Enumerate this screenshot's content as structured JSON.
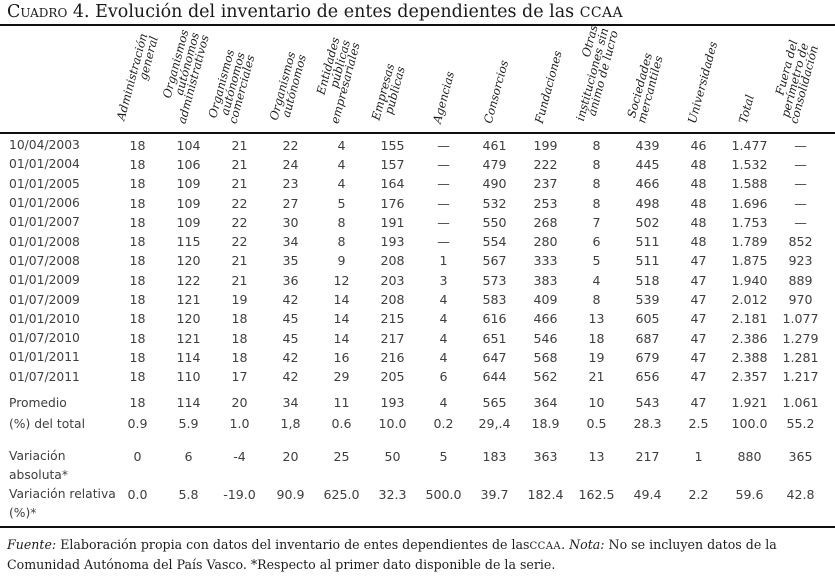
{
  "title": {
    "label": "Cuadro 4.",
    "text": "Evolución del inventario de entes dependientes de las",
    "acronym": "CCAA"
  },
  "table": {
    "headers": [
      "Administración\ngeneral",
      "Organismos\nautónomos\nadministrativos",
      "Organismos\nautónomos\ncomerciales",
      "Organismos\nautónomos",
      "Entidades\npúblicas\nempresariales",
      "Empresas\npúblicas",
      "Agencias",
      "Consorcios",
      "Fundaciones",
      "Otras\ninstituciones sin\nánimo de lucro",
      "Sociedades\nmercantiles",
      "Universidades",
      "Total",
      "Fuera del\nperímetro de\nconsolidación"
    ],
    "rows": [
      {
        "label": "10/04/2003",
        "values": [
          "18",
          "104",
          "21",
          "22",
          "4",
          "155",
          "—",
          "461",
          "199",
          "8",
          "439",
          "46",
          "1.477",
          "—"
        ]
      },
      {
        "label": "01/01/2004",
        "values": [
          "18",
          "106",
          "21",
          "24",
          "4",
          "157",
          "—",
          "479",
          "222",
          "8",
          "445",
          "48",
          "1.532",
          "—"
        ]
      },
      {
        "label": "01/01/2005",
        "values": [
          "18",
          "109",
          "21",
          "23",
          "4",
          "164",
          "—",
          "490",
          "237",
          "8",
          "466",
          "48",
          "1.588",
          "—"
        ]
      },
      {
        "label": "01/01/2006",
        "values": [
          "18",
          "109",
          "22",
          "27",
          "5",
          "176",
          "—",
          "532",
          "253",
          "8",
          "498",
          "48",
          "1.696",
          "—"
        ]
      },
      {
        "label": "01/01/2007",
        "values": [
          "18",
          "109",
          "22",
          "30",
          "8",
          "191",
          "—",
          "550",
          "268",
          "7",
          "502",
          "48",
          "1.753",
          "—"
        ]
      },
      {
        "label": "01/01/2008",
        "values": [
          "18",
          "115",
          "22",
          "34",
          "8",
          "193",
          "—",
          "554",
          "280",
          "6",
          "511",
          "48",
          "1.789",
          "852"
        ]
      },
      {
        "label": "01/07/2008",
        "values": [
          "18",
          "120",
          "21",
          "35",
          "9",
          "208",
          "1",
          "567",
          "333",
          "5",
          "511",
          "47",
          "1.875",
          "923"
        ]
      },
      {
        "label": "01/01/2009",
        "values": [
          "18",
          "122",
          "21",
          "36",
          "12",
          "203",
          "3",
          "573",
          "383",
          "4",
          "518",
          "47",
          "1.940",
          "889"
        ]
      },
      {
        "label": "01/07/2009",
        "values": [
          "18",
          "121",
          "19",
          "42",
          "14",
          "208",
          "4",
          "583",
          "409",
          "8",
          "539",
          "47",
          "2.012",
          "970"
        ]
      },
      {
        "label": "01/01/2010",
        "values": [
          "18",
          "120",
          "18",
          "45",
          "14",
          "215",
          "4",
          "616",
          "466",
          "13",
          "605",
          "47",
          "2.181",
          "1.077"
        ]
      },
      {
        "label": "01/07/2010",
        "values": [
          "18",
          "121",
          "18",
          "45",
          "14",
          "217",
          "4",
          "651",
          "546",
          "18",
          "687",
          "47",
          "2.386",
          "1.279"
        ]
      },
      {
        "label": "01/01/2011",
        "values": [
          "18",
          "114",
          "18",
          "42",
          "16",
          "216",
          "4",
          "647",
          "568",
          "19",
          "679",
          "47",
          "2.388",
          "1.281"
        ]
      },
      {
        "label": "01/07/2011",
        "values": [
          "18",
          "110",
          "17",
          "42",
          "29",
          "205",
          "6",
          "644",
          "562",
          "21",
          "656",
          "47",
          "2.357",
          "1.217"
        ]
      }
    ],
    "summary_rows": [
      {
        "label": "Promedio",
        "values": [
          "18",
          "114",
          "20",
          "34",
          "11",
          "193",
          "4",
          "565",
          "364",
          "10",
          "543",
          "47",
          "1.921",
          "1.061"
        ]
      },
      {
        "label": "(%) del total",
        "values": [
          "0.9",
          "5.9",
          "1.0",
          "1,8",
          "0.6",
          "10.0",
          "0.2",
          "29,.4",
          "18.9",
          "0.5",
          "28.3",
          "2.5",
          "100.0",
          "55.2"
        ]
      },
      {
        "label": "Variación\nabsoluta*",
        "values": [
          "0",
          "6",
          "-4",
          "20",
          "25",
          "50",
          "5",
          "183",
          "363",
          "13",
          "217",
          "1",
          "880",
          "365"
        ]
      },
      {
        "label": "Variación relativa\n(%)*",
        "values": [
          "0.0",
          "5.8",
          "-19.0",
          "90.9",
          "625.0",
          "32.3",
          "500.0",
          "39.7",
          "182.4",
          "162.5",
          "49.4",
          "2.2",
          "59.6",
          "42.8"
        ]
      }
    ]
  },
  "footer": {
    "fuente_label": "Fuente:",
    "fuente_text": "Elaboración propia con datos del inventario de entes dependientes de las",
    "ccaa": "CCAA",
    "period": ".",
    "nota_label": "Nota:",
    "nota_text": "No se incluyen datos de la Comunidad Autónoma del País Vasco. *Respecto al primer dato disponible de la serie."
  }
}
